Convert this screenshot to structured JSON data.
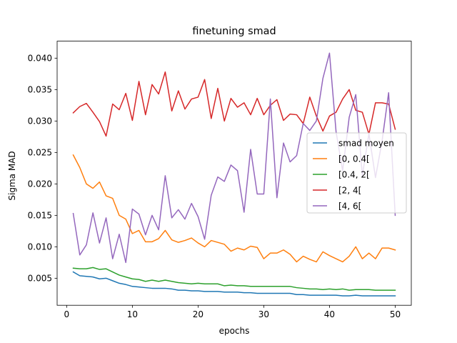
{
  "chart_data": {
    "type": "line",
    "title": "finetuning smad",
    "xlabel": "epochs",
    "ylabel": "Sigma MAD",
    "xlim": [
      -1.45,
      52.45
    ],
    "ylim": [
      0.0007,
      0.0427
    ],
    "x_ticks": [
      0,
      10,
      20,
      30,
      40,
      50
    ],
    "y_ticks": [
      0.005,
      0.01,
      0.015,
      0.02,
      0.025,
      0.03,
      0.035,
      0.04
    ],
    "y_tick_labels": [
      "0.005",
      "0.010",
      "0.015",
      "0.020",
      "0.025",
      "0.030",
      "0.035",
      "0.040"
    ],
    "grid": false,
    "legend_position": "center-right",
    "x": [
      1,
      2,
      3,
      4,
      5,
      6,
      7,
      8,
      9,
      10,
      11,
      12,
      13,
      14,
      15,
      16,
      17,
      18,
      19,
      20,
      21,
      22,
      23,
      24,
      25,
      26,
      27,
      28,
      29,
      30,
      31,
      32,
      33,
      34,
      35,
      36,
      37,
      38,
      39,
      40,
      41,
      42,
      43,
      44,
      45,
      46,
      47,
      48,
      49,
      50
    ],
    "series": [
      {
        "name": "smad moyen",
        "color": "#1f77b4",
        "values": [
          0.006,
          0.0054,
          0.0053,
          0.0052,
          0.0049,
          0.005,
          0.0046,
          0.0042,
          0.004,
          0.0037,
          0.0036,
          0.0035,
          0.0034,
          0.0034,
          0.0034,
          0.0033,
          0.0031,
          0.0031,
          0.003,
          0.003,
          0.0029,
          0.0029,
          0.0029,
          0.0028,
          0.0028,
          0.0028,
          0.0027,
          0.0027,
          0.0026,
          0.0026,
          0.0026,
          0.0026,
          0.0026,
          0.0026,
          0.0024,
          0.0024,
          0.0023,
          0.0023,
          0.0023,
          0.0023,
          0.0023,
          0.0022,
          0.0022,
          0.0023,
          0.0022,
          0.0022,
          0.0022,
          0.0022,
          0.0022,
          0.0022
        ]
      },
      {
        "name": "[0, 0.4[",
        "color": "#ff7f0e",
        "values": [
          0.0246,
          0.0226,
          0.02,
          0.0193,
          0.0203,
          0.0181,
          0.0177,
          0.015,
          0.0144,
          0.0121,
          0.0126,
          0.0108,
          0.0108,
          0.0113,
          0.0126,
          0.0111,
          0.0107,
          0.011,
          0.0114,
          0.0106,
          0.01,
          0.011,
          0.0107,
          0.0104,
          0.0093,
          0.0098,
          0.0095,
          0.0101,
          0.0099,
          0.0081,
          0.009,
          0.009,
          0.0095,
          0.0088,
          0.0076,
          0.0085,
          0.008,
          0.0076,
          0.0092,
          0.0086,
          0.0081,
          0.0076,
          0.0085,
          0.01,
          0.0081,
          0.009,
          0.0081,
          0.0098,
          0.0098,
          0.0095
        ]
      },
      {
        "name": "[0.4, 2[",
        "color": "#2ca02c",
        "values": [
          0.0066,
          0.0065,
          0.0065,
          0.0067,
          0.0064,
          0.0065,
          0.006,
          0.0055,
          0.0052,
          0.0049,
          0.0048,
          0.0045,
          0.0047,
          0.0045,
          0.0047,
          0.0045,
          0.0043,
          0.0042,
          0.0041,
          0.0042,
          0.0041,
          0.0041,
          0.0041,
          0.0038,
          0.0039,
          0.0038,
          0.0038,
          0.0037,
          0.0037,
          0.0037,
          0.0037,
          0.0037,
          0.0037,
          0.0037,
          0.0035,
          0.0034,
          0.0033,
          0.0033,
          0.0032,
          0.0033,
          0.0032,
          0.0033,
          0.0031,
          0.0032,
          0.0032,
          0.0032,
          0.0031,
          0.0031,
          0.0031,
          0.0031
        ]
      },
      {
        "name": "[2, 4[",
        "color": "#d62728",
        "values": [
          0.0313,
          0.0323,
          0.0328,
          0.0314,
          0.0299,
          0.0276,
          0.0327,
          0.0318,
          0.0344,
          0.0301,
          0.0363,
          0.031,
          0.0358,
          0.0343,
          0.0378,
          0.0316,
          0.0348,
          0.0319,
          0.0335,
          0.0338,
          0.0366,
          0.0304,
          0.0352,
          0.03,
          0.0336,
          0.0322,
          0.0329,
          0.031,
          0.0336,
          0.031,
          0.0325,
          0.0334,
          0.0301,
          0.0311,
          0.031,
          0.0296,
          0.0338,
          0.0308,
          0.0284,
          0.0308,
          0.0314,
          0.0335,
          0.035,
          0.0317,
          0.0314,
          0.0279,
          0.0329,
          0.0329,
          0.0327,
          0.0287
        ]
      },
      {
        "name": "[4, 6[",
        "color": "#9467bd",
        "values": [
          0.0153,
          0.0087,
          0.0103,
          0.0154,
          0.0106,
          0.0146,
          0.0081,
          0.012,
          0.0075,
          0.016,
          0.0152,
          0.0119,
          0.015,
          0.0127,
          0.0213,
          0.0146,
          0.0159,
          0.0144,
          0.0169,
          0.0148,
          0.0112,
          0.0182,
          0.0211,
          0.0204,
          0.023,
          0.0221,
          0.0155,
          0.0255,
          0.0184,
          0.0184,
          0.0335,
          0.0178,
          0.0265,
          0.0235,
          0.0245,
          0.0296,
          0.0285,
          0.03,
          0.0368,
          0.0408,
          0.0283,
          0.0221,
          0.0306,
          0.0342,
          0.0213,
          0.028,
          0.021,
          0.0268,
          0.0345,
          0.015
        ]
      }
    ]
  }
}
